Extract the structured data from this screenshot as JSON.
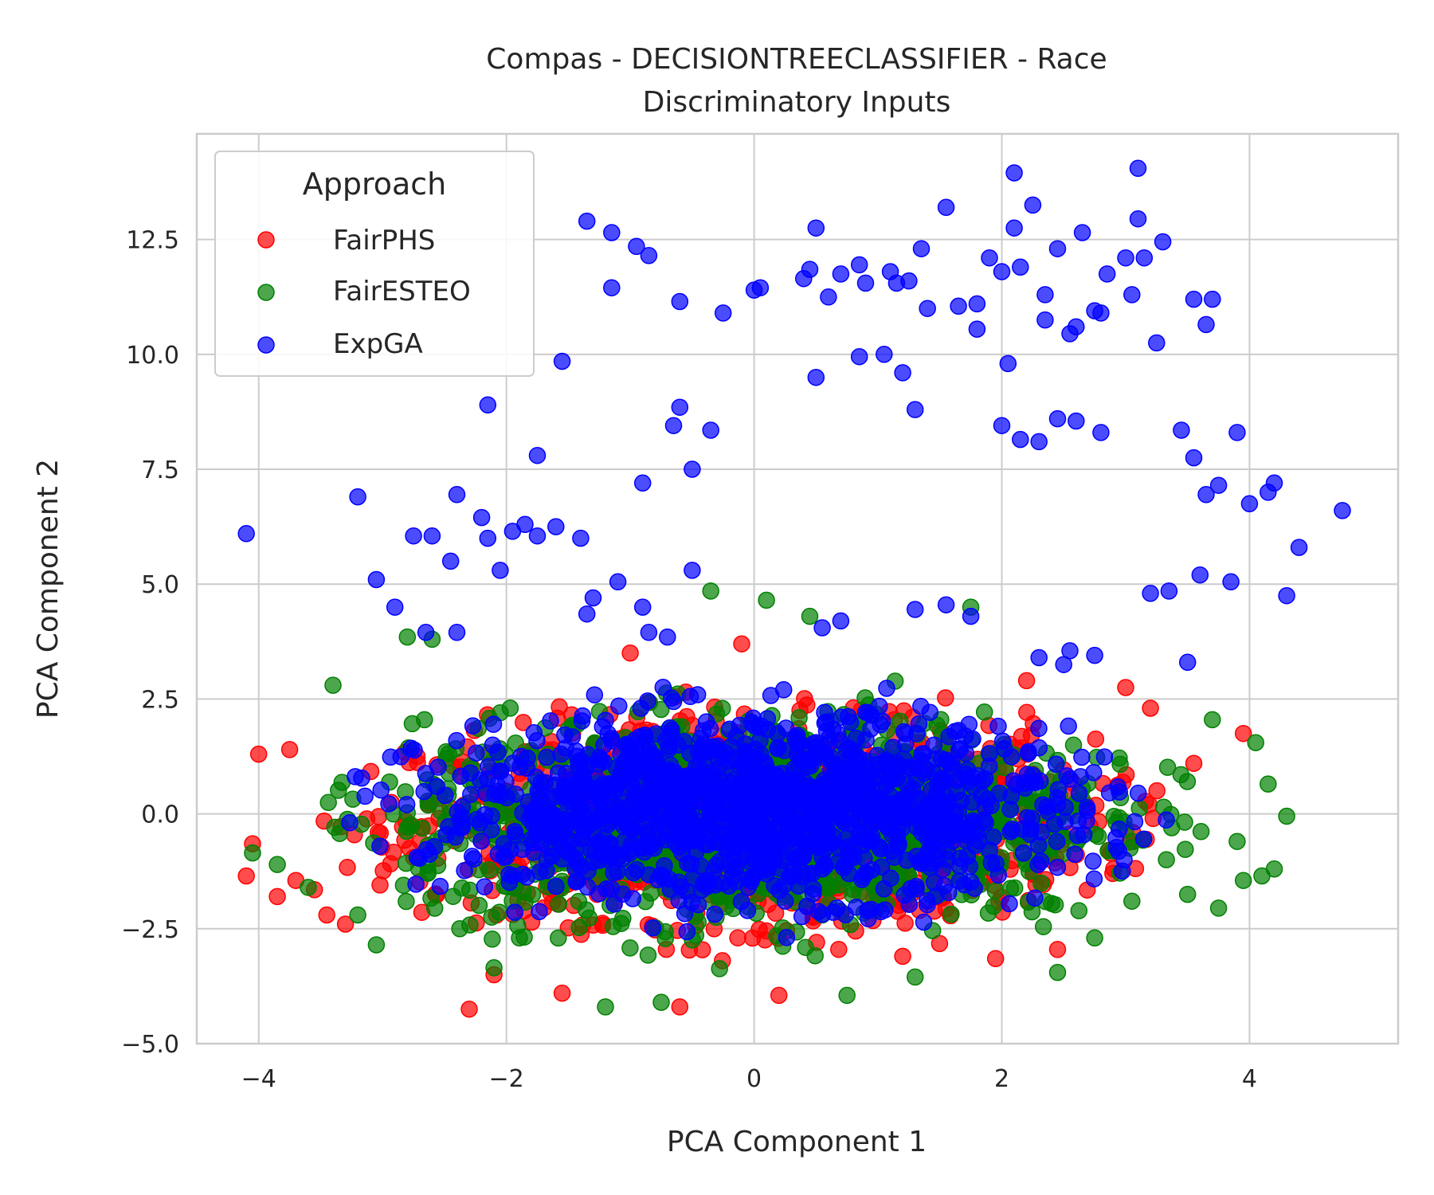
{
  "chart_data": {
    "type": "scatter",
    "title": "Compas - DECISIONTREECLASSIFIER - Race",
    "subtitle": "Discriminatory Inputs",
    "xlabel": "PCA Component 1",
    "ylabel": "PCA Component 2",
    "xlim": [
      -4.5,
      5.2
    ],
    "ylim": [
      -5.0,
      14.8
    ],
    "xticks": [
      -4,
      -2,
      0,
      2,
      4
    ],
    "xtick_labels": [
      "−4",
      "−2",
      "0",
      "2",
      "4"
    ],
    "yticks": [
      -5.0,
      -2.5,
      0.0,
      2.5,
      5.0,
      7.5,
      10.0,
      12.5
    ],
    "ytick_labels": [
      "−5.0",
      "−2.5",
      "0.0",
      "2.5",
      "5.0",
      "7.5",
      "10.0",
      "12.5"
    ],
    "grid": true,
    "legend": {
      "title": "Approach",
      "position": "top-left"
    },
    "series": [
      {
        "name": "FairPHS",
        "color": "#ff0000",
        "cluster": {
          "center": [
            0.0,
            -0.2
          ],
          "spread": [
            1.35,
            1.05
          ]
        },
        "points": [
          [
            -4.0,
            1.3
          ],
          [
            -4.05,
            -0.65
          ],
          [
            -4.1,
            -1.35
          ],
          [
            -3.85,
            -1.8
          ],
          [
            -3.75,
            1.4
          ],
          [
            -3.7,
            -1.45
          ],
          [
            -3.55,
            -1.65
          ],
          [
            -3.45,
            -2.2
          ],
          [
            -3.3,
            -2.4
          ],
          [
            -2.3,
            -4.25
          ],
          [
            -1.55,
            -3.9
          ],
          [
            -0.6,
            -4.2
          ],
          [
            0.2,
            -3.95
          ],
          [
            1.2,
            -3.1
          ],
          [
            1.95,
            -3.15
          ],
          [
            2.45,
            -2.95
          ],
          [
            3.0,
            2.75
          ],
          [
            3.2,
            2.3
          ],
          [
            3.55,
            1.1
          ],
          [
            3.95,
            1.75
          ],
          [
            -2.1,
            -3.5
          ],
          [
            -0.1,
            3.7
          ],
          [
            -1.0,
            3.5
          ],
          [
            2.2,
            2.9
          ]
        ]
      },
      {
        "name": "FairESTEO",
        "color": "#008000",
        "cluster": {
          "center": [
            0.0,
            -0.1
          ],
          "spread": [
            1.4,
            1.1
          ]
        },
        "points": [
          [
            -4.05,
            -0.85
          ],
          [
            -3.85,
            -1.1
          ],
          [
            -3.6,
            -1.6
          ],
          [
            -3.4,
            2.8
          ],
          [
            -3.2,
            -2.2
          ],
          [
            -3.05,
            -2.85
          ],
          [
            -2.8,
            3.85
          ],
          [
            -2.6,
            3.8
          ],
          [
            -2.1,
            -3.35
          ],
          [
            -1.2,
            -4.2
          ],
          [
            -0.35,
            4.85
          ],
          [
            0.1,
            4.65
          ],
          [
            0.45,
            4.3
          ],
          [
            1.75,
            4.5
          ],
          [
            1.3,
            -3.55
          ],
          [
            2.45,
            -3.45
          ],
          [
            2.75,
            -2.7
          ],
          [
            3.05,
            -1.9
          ],
          [
            3.5,
            -1.75
          ],
          [
            3.75,
            -2.05
          ],
          [
            3.95,
            -1.45
          ],
          [
            4.1,
            -1.35
          ],
          [
            4.15,
            0.65
          ],
          [
            4.05,
            1.55
          ],
          [
            4.3,
            -0.05
          ],
          [
            4.2,
            -1.2
          ],
          [
            3.9,
            -0.6
          ],
          [
            3.7,
            2.05
          ],
          [
            -0.75,
            -4.1
          ],
          [
            0.75,
            -3.95
          ]
        ]
      },
      {
        "name": "ExpGA",
        "color": "#0000ff",
        "cluster": {
          "center": [
            0.0,
            0.1
          ],
          "spread": [
            1.3,
            0.95
          ]
        },
        "points": [
          [
            -4.1,
            6.1
          ],
          [
            -3.2,
            6.9
          ],
          [
            -3.05,
            5.1
          ],
          [
            -2.9,
            4.5
          ],
          [
            -2.75,
            6.05
          ],
          [
            -2.6,
            6.05
          ],
          [
            -2.45,
            5.5
          ],
          [
            -2.4,
            6.95
          ],
          [
            -2.2,
            6.45
          ],
          [
            -2.15,
            6.0
          ],
          [
            -2.05,
            5.3
          ],
          [
            -1.95,
            6.15
          ],
          [
            -1.85,
            6.3
          ],
          [
            -1.75,
            6.05
          ],
          [
            -1.6,
            6.25
          ],
          [
            -1.55,
            9.85
          ],
          [
            -2.15,
            8.9
          ],
          [
            -1.75,
            7.8
          ],
          [
            -1.4,
            6.0
          ],
          [
            -1.35,
            12.9
          ],
          [
            -1.15,
            12.65
          ],
          [
            -1.15,
            11.45
          ],
          [
            -0.95,
            12.35
          ],
          [
            -0.85,
            12.15
          ],
          [
            -0.6,
            11.15
          ],
          [
            -0.35,
            8.35
          ],
          [
            -0.6,
            8.85
          ],
          [
            -0.65,
            8.45
          ],
          [
            -0.9,
            7.2
          ],
          [
            -0.5,
            7.5
          ],
          [
            -0.25,
            10.9
          ],
          [
            0.0,
            11.4
          ],
          [
            0.05,
            11.45
          ],
          [
            0.4,
            11.65
          ],
          [
            0.45,
            11.85
          ],
          [
            0.5,
            12.75
          ],
          [
            0.6,
            11.25
          ],
          [
            0.7,
            11.75
          ],
          [
            0.85,
            11.95
          ],
          [
            0.9,
            11.55
          ],
          [
            1.1,
            11.8
          ],
          [
            1.15,
            11.55
          ],
          [
            1.25,
            11.6
          ],
          [
            1.35,
            12.3
          ],
          [
            1.4,
            11.0
          ],
          [
            1.55,
            13.2
          ],
          [
            1.65,
            11.05
          ],
          [
            1.8,
            11.1
          ],
          [
            1.9,
            12.1
          ],
          [
            2.0,
            11.8
          ],
          [
            2.1,
            12.75
          ],
          [
            2.15,
            11.9
          ],
          [
            2.25,
            13.25
          ],
          [
            2.35,
            11.3
          ],
          [
            2.45,
            12.3
          ],
          [
            2.55,
            10.45
          ],
          [
            2.65,
            12.65
          ],
          [
            2.8,
            10.9
          ],
          [
            2.85,
            11.75
          ],
          [
            3.0,
            12.1
          ],
          [
            3.1,
            12.95
          ],
          [
            3.15,
            12.1
          ],
          [
            3.25,
            10.25
          ],
          [
            3.3,
            12.45
          ],
          [
            3.05,
            11.3
          ],
          [
            2.1,
            13.95
          ],
          [
            3.1,
            14.05
          ],
          [
            3.55,
            11.2
          ],
          [
            3.65,
            10.65
          ],
          [
            3.7,
            11.2
          ],
          [
            0.5,
            9.5
          ],
          [
            0.85,
            9.95
          ],
          [
            1.05,
            10.0
          ],
          [
            1.2,
            9.6
          ],
          [
            1.3,
            8.8
          ],
          [
            2.05,
            9.8
          ],
          [
            2.35,
            10.75
          ],
          [
            2.6,
            10.6
          ],
          [
            2.75,
            10.95
          ],
          [
            1.8,
            10.55
          ],
          [
            2.0,
            8.45
          ],
          [
            2.15,
            8.15
          ],
          [
            2.3,
            8.1
          ],
          [
            2.45,
            8.6
          ],
          [
            2.6,
            8.55
          ],
          [
            2.8,
            8.3
          ],
          [
            3.45,
            8.35
          ],
          [
            3.55,
            7.75
          ],
          [
            3.75,
            7.15
          ],
          [
            3.9,
            8.3
          ],
          [
            4.15,
            7.0
          ],
          [
            4.2,
            7.2
          ],
          [
            4.3,
            4.75
          ],
          [
            4.4,
            5.8
          ],
          [
            4.75,
            6.6
          ],
          [
            3.85,
            5.05
          ],
          [
            3.6,
            5.2
          ],
          [
            3.35,
            4.85
          ],
          [
            3.2,
            4.8
          ],
          [
            3.5,
            3.3
          ],
          [
            2.55,
            3.55
          ],
          [
            2.75,
            3.45
          ],
          [
            2.5,
            3.25
          ],
          [
            2.3,
            3.4
          ],
          [
            1.3,
            4.45
          ],
          [
            1.55,
            4.55
          ],
          [
            1.75,
            4.3
          ],
          [
            0.55,
            4.05
          ],
          [
            0.7,
            4.2
          ],
          [
            -0.5,
            5.3
          ],
          [
            -0.9,
            4.5
          ],
          [
            -1.3,
            4.7
          ],
          [
            -1.35,
            4.35
          ],
          [
            -1.1,
            5.05
          ],
          [
            -2.4,
            3.95
          ],
          [
            -2.65,
            3.95
          ],
          [
            -0.85,
            3.95
          ],
          [
            -0.7,
            3.85
          ],
          [
            3.65,
            6.95
          ],
          [
            4.0,
            6.75
          ]
        ]
      }
    ]
  }
}
